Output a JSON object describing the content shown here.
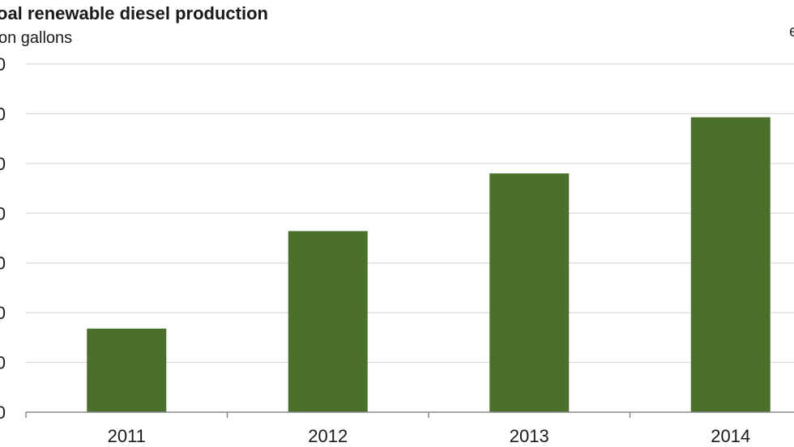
{
  "chart_data": {
    "type": "bar",
    "title": "oal renewable diesel production",
    "subtitle": "on gallons",
    "corner_text": "e",
    "categories": [
      "2011",
      "2012",
      "2013",
      "2014"
    ],
    "values": [
      0.168,
      0.364,
      0.48,
      0.593
    ],
    "ylim": [
      0,
      0.7
    ],
    "ytick_values": [
      0,
      0.1,
      0.2,
      0.3,
      0.4,
      0.5,
      0.6,
      0.7
    ],
    "ytick_labels": [
      "0",
      "0",
      "0",
      "0",
      "0",
      "0",
      "0",
      "0"
    ],
    "grid": true,
    "bar_color": "#4a7029",
    "grid_color": "#d9d9d9",
    "axis_color": "#888888"
  }
}
